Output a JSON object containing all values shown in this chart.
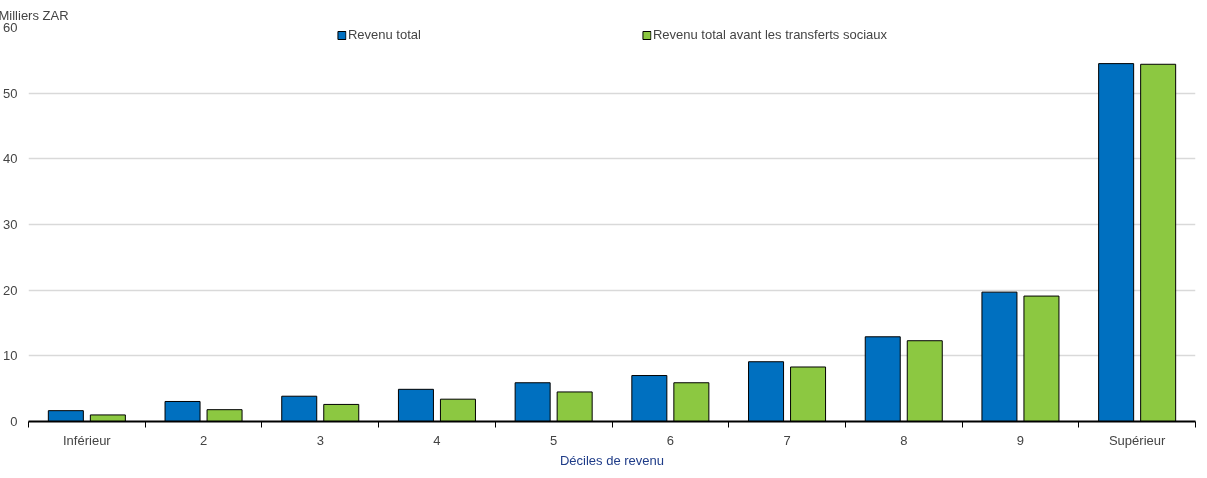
{
  "chart_data": {
    "type": "bar",
    "ylabel": "Milliers ZAR",
    "xlabel": "Déciles de revenu",
    "categories": [
      "Inférieur",
      "2",
      "3",
      "4",
      "5",
      "6",
      "7",
      "8",
      "9",
      "Supérieur"
    ],
    "series": [
      {
        "name": "Revenu total",
        "color": "#0070c0",
        "values": [
          1.65,
          3.05,
          3.85,
          4.9,
          5.9,
          7.0,
          9.1,
          12.9,
          19.7,
          54.5
        ]
      },
      {
        "name": "Revenu total avant les transferts sociaux",
        "color": "#8cc841",
        "values": [
          1.0,
          1.8,
          2.6,
          3.4,
          4.5,
          5.9,
          8.3,
          12.3,
          19.1,
          54.4
        ]
      }
    ],
    "ylim": [
      0,
      60
    ],
    "yticks": [
      0,
      10,
      20,
      30,
      40,
      50,
      60
    ],
    "grid": "y",
    "legend": "top"
  }
}
